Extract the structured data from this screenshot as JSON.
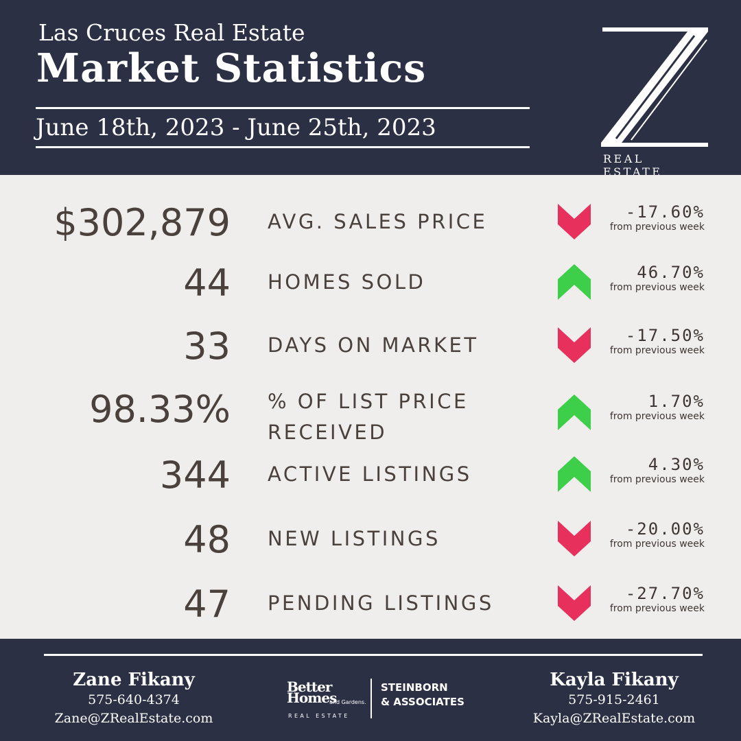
{
  "header": {
    "subtitle": "Las Cruces Real Estate",
    "title": "Market Statistics",
    "date_range": "June 18th, 2023 - June 25th, 2023"
  },
  "logo": {
    "letter": "Z",
    "text": "REAL ESTATE"
  },
  "colors": {
    "navy": "#2c3045",
    "down": "#e8305d",
    "up": "#3dcf4a",
    "text": "#4a413d"
  },
  "stats": [
    {
      "value": "$302,879",
      "label": "AVG. SALES PRICE",
      "direction": "down",
      "change": "-17.60%",
      "note": "from previous week"
    },
    {
      "value": "44",
      "label": "HOMES SOLD",
      "direction": "up",
      "change": "46.70%",
      "note": "from previous week"
    },
    {
      "value": "33",
      "label": "DAYS ON MARKET",
      "direction": "down",
      "change": "-17.50%",
      "note": "from previous week"
    },
    {
      "value": "98.33%",
      "label_line1": "% OF LIST PRICE",
      "label_line2": "RECEIVED",
      "direction": "up",
      "change": "1.70%",
      "note": "from previous week"
    },
    {
      "value": "344",
      "label": "ACTIVE LISTINGS",
      "direction": "up",
      "change": "4.30%",
      "note": "from previous week"
    },
    {
      "value": "48",
      "label": "NEW LISTINGS",
      "direction": "down",
      "change": "-20.00%",
      "note": "from previous week"
    },
    {
      "value": "47",
      "label": "PENDING LISTINGS",
      "direction": "down",
      "change": "-27.70%",
      "note": "from previous week"
    }
  ],
  "footer": {
    "agent_left": {
      "name": "Zane Fikany",
      "phone": "575-640-4374",
      "email": "Zane@ZRealEstate.com"
    },
    "agent_right": {
      "name": "Kayla Fikany",
      "phone": "575-915-2461",
      "email": "Kayla@ZRealEstate.com"
    },
    "brokerage": {
      "better": "Better",
      "homes": "Homes",
      "gardens": "and Gardens.",
      "real_estate": "REAL ESTATE",
      "steinborn": "STEINBORN",
      "associates": "& ASSOCIATES"
    }
  }
}
